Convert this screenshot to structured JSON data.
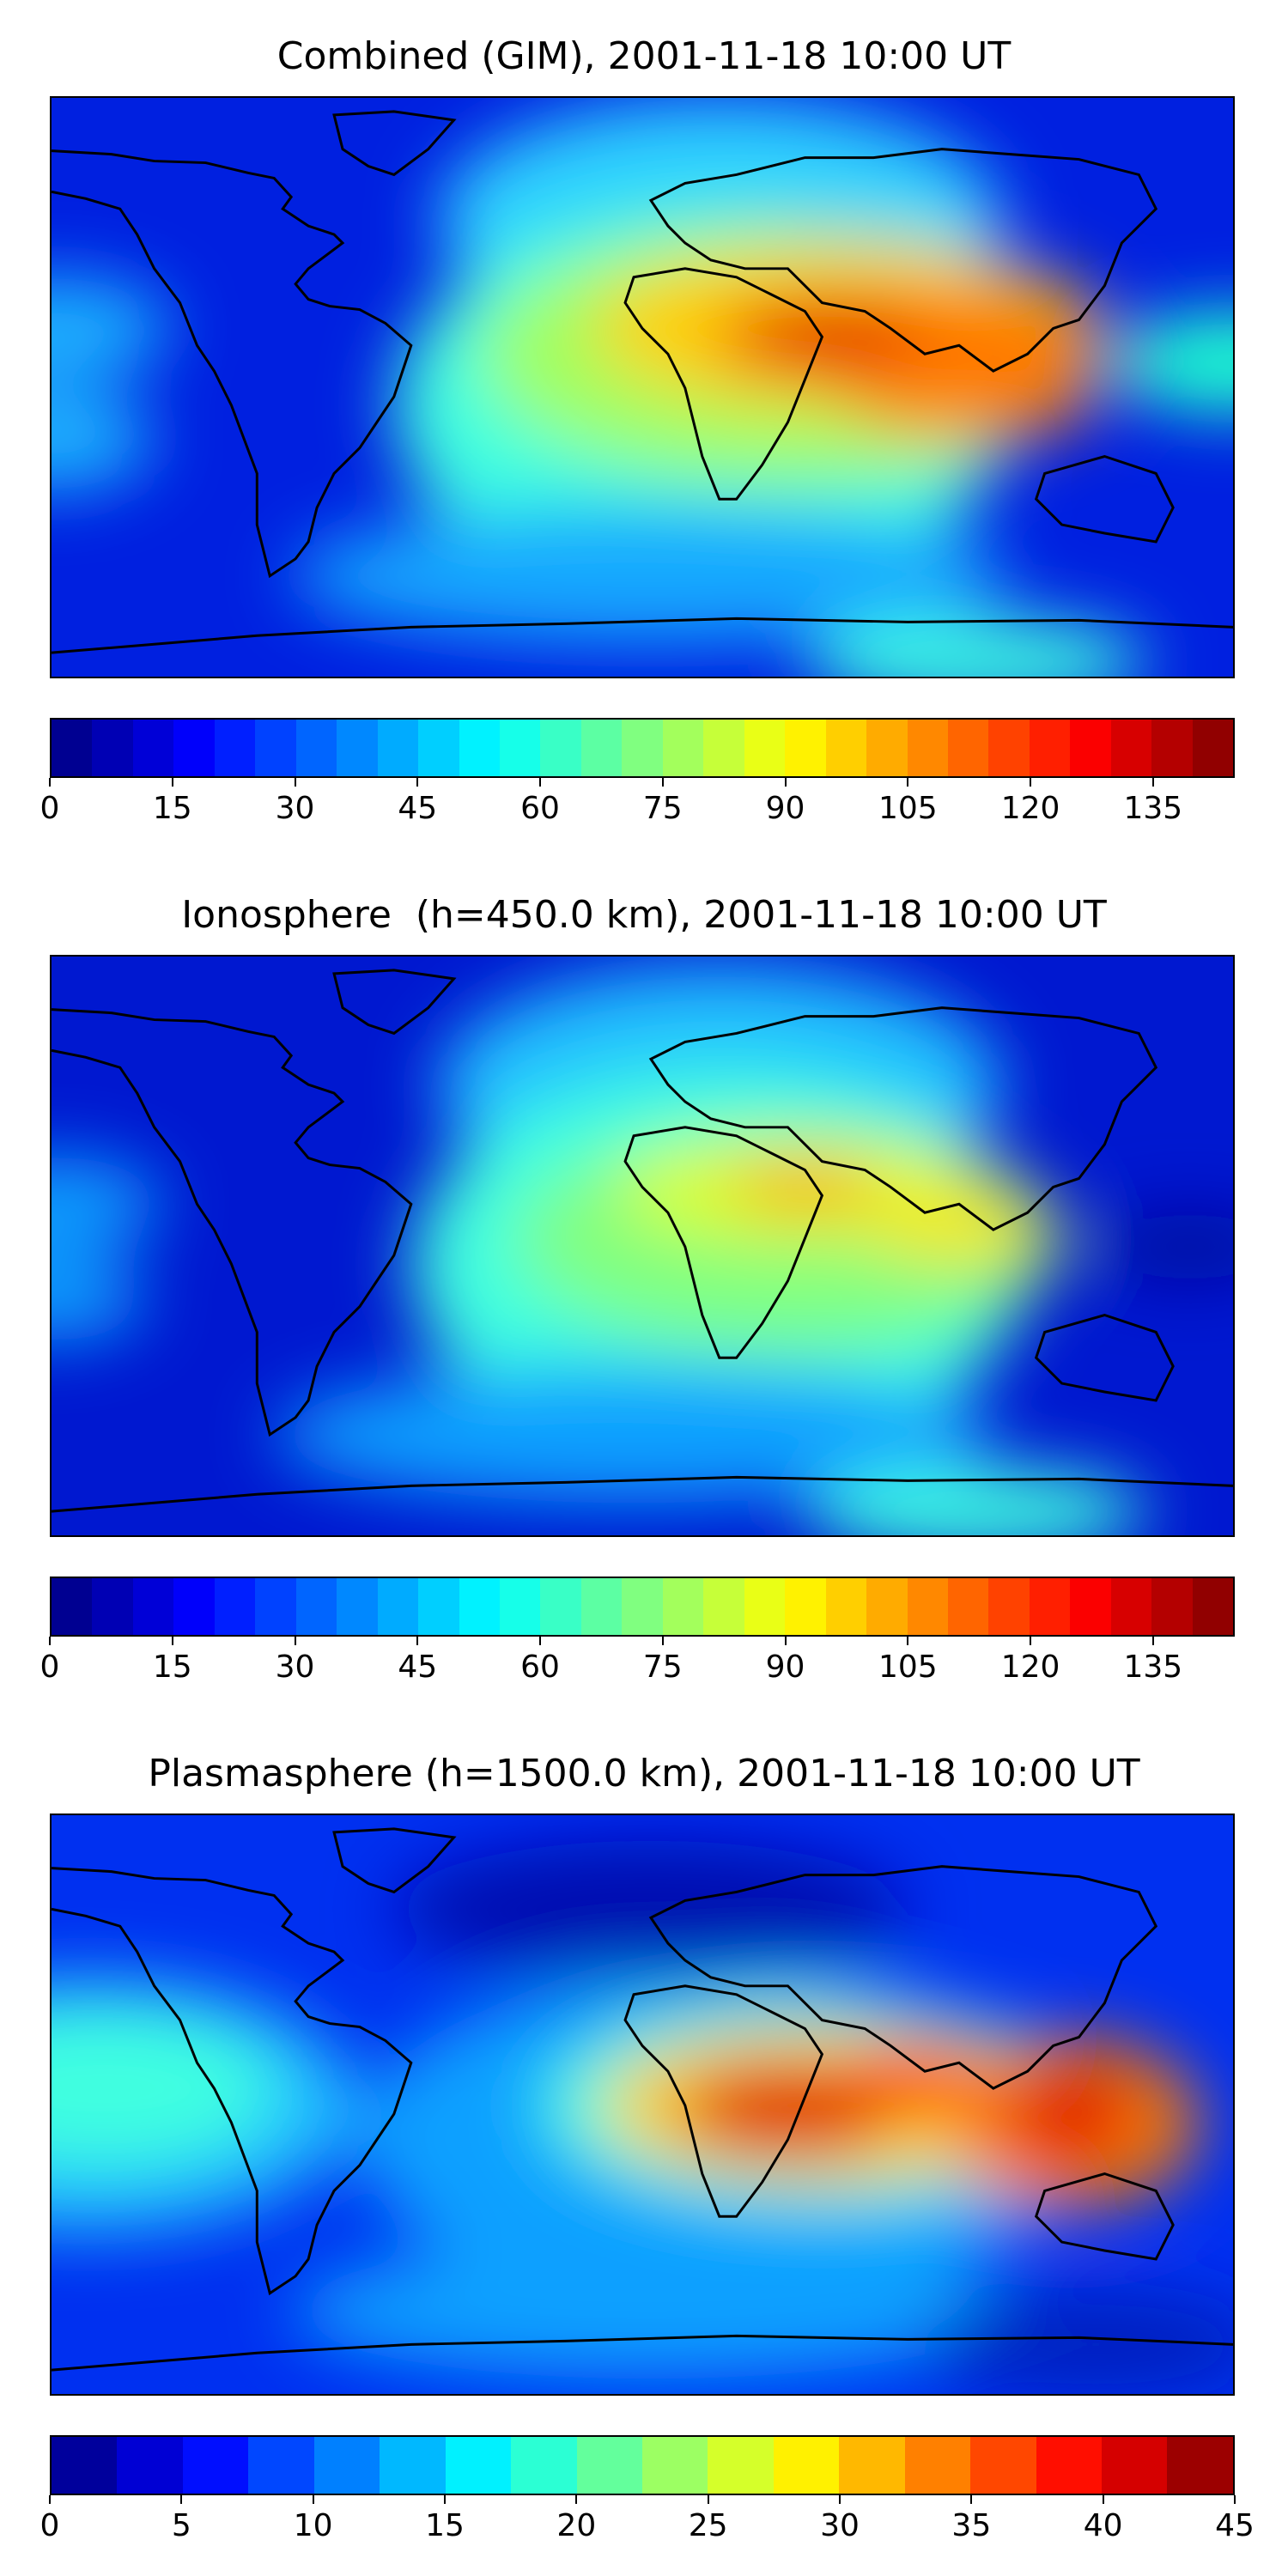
{
  "figure": {
    "panels": [
      {
        "title": "Combined (GIM), 2001-11-18 10:00 UT",
        "colorbar": {
          "min": 0,
          "max": 145,
          "levels": 29,
          "ticks": [
            "0",
            "15",
            "30",
            "45",
            "60",
            "75",
            "90",
            "105",
            "120",
            "135"
          ],
          "tick_values": [
            0,
            15,
            30,
            45,
            60,
            75,
            90,
            105,
            120,
            135
          ]
        },
        "field_peak_fraction": 0.95
      },
      {
        "title": "Ionosphere  (h=450.0 km), 2001-11-18 10:00 UT",
        "colorbar": {
          "min": 0,
          "max": 145,
          "levels": 29,
          "ticks": [
            "0",
            "15",
            "30",
            "45",
            "60",
            "75",
            "90",
            "105",
            "120",
            "135"
          ],
          "tick_values": [
            0,
            15,
            30,
            45,
            60,
            75,
            90,
            105,
            120,
            135
          ]
        },
        "field_peak_fraction": 0.72
      },
      {
        "title": "Plasmasphere (h=1500.0 km), 2001-11-18 10:00 UT",
        "colorbar": {
          "min": 0,
          "max": 45,
          "levels": 18,
          "ticks": [
            "0",
            "5",
            "10",
            "15",
            "20",
            "25",
            "30",
            "35",
            "40",
            "45"
          ],
          "tick_values": [
            0,
            5,
            10,
            15,
            20,
            25,
            30,
            35,
            40,
            45
          ]
        },
        "field_peak_fraction": 0.9
      }
    ],
    "colormap": "jet",
    "coastline_color": "#000000"
  }
}
